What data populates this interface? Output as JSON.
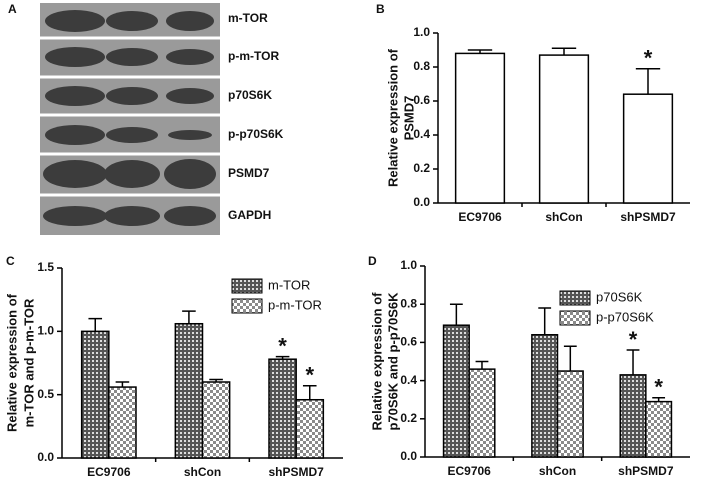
{
  "blot": {
    "panel": "A",
    "labels": [
      "m-TOR",
      "p-m-TOR",
      "p70S6K",
      "p-p70S6K",
      "PSMD7",
      "GAPDH"
    ]
  },
  "chart_data": [
    {
      "type": "bar",
      "panel": "B",
      "ylabel": [
        "Relative expression of",
        "PSMD7"
      ],
      "categories": [
        "EC9706",
        "shCon",
        "shPSMD7"
      ],
      "values": [
        0.88,
        0.87,
        0.64
      ],
      "errors": [
        0.02,
        0.04,
        0.15
      ],
      "markers": [
        null,
        null,
        "*"
      ],
      "color": "#ffffff",
      "ylim": [
        0,
        1
      ],
      "yticks": [
        {
          "value": 0,
          "label": "0.0"
        },
        0.2,
        0.4,
        0.6,
        0.8,
        {
          "value": 1,
          "label": "1.0"
        }
      ]
    },
    {
      "type": "bar",
      "panel": "C",
      "ylabel": [
        "Relative expression of",
        "m-TOR and p-m-TOR"
      ],
      "categories": [
        "EC9706",
        "shCon",
        "shPSMD7"
      ],
      "series": [
        {
          "name": "m-TOR",
          "color": "#555555",
          "values": [
            1.0,
            1.06,
            0.78
          ],
          "errors": [
            0.1,
            0.1,
            0.02
          ],
          "markers": [
            null,
            null,
            "*"
          ]
        },
        {
          "name": "p-m-TOR",
          "color": "#8a8a8a",
          "values": [
            0.56,
            0.6,
            0.46
          ],
          "errors": [
            0.04,
            0.02,
            0.11
          ],
          "markers": [
            null,
            null,
            "*"
          ]
        }
      ],
      "legend": "top-right",
      "ylim": [
        0,
        1.5
      ],
      "yticks": [
        {
          "value": 0,
          "label": "0.0"
        },
        0.5,
        {
          "value": 1,
          "label": "1.0"
        },
        1.5
      ]
    },
    {
      "type": "bar",
      "panel": "D",
      "ylabel": [
        "Relative expression of",
        "p70S6K and p-p70S6K"
      ],
      "categories": [
        "EC9706",
        "shCon",
        "shPSMD7"
      ],
      "series": [
        {
          "name": "p70S6K",
          "color": "#555555",
          "values": [
            0.69,
            0.64,
            0.43
          ],
          "errors": [
            0.11,
            0.14,
            0.13
          ],
          "markers": [
            null,
            null,
            "*"
          ]
        },
        {
          "name": "p-p70S6K",
          "color": "#8a8a8a",
          "values": [
            0.46,
            0.45,
            0.29
          ],
          "errors": [
            0.04,
            0.13,
            0.02
          ],
          "markers": [
            null,
            null,
            "*"
          ]
        }
      ],
      "legend": "top-right",
      "ylim": [
        0,
        1
      ],
      "yticks": [
        {
          "value": 0,
          "label": "0.0"
        },
        0.2,
        0.4,
        0.6,
        0.8,
        {
          "value": 1,
          "label": "1.0"
        }
      ]
    }
  ]
}
